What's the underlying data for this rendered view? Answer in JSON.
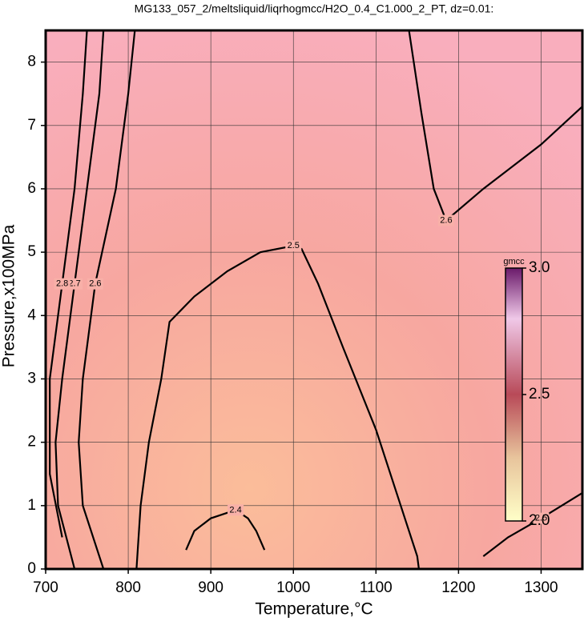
{
  "chart_data": {
    "type": "contour",
    "title": "MG133_057_2/meltsliquid/liqrhogmcc/H2O_0.4_C1.000_2_PT, dz=0.01:",
    "x_label": "Temperature,°C",
    "y_label": "Pressure,x100MPa",
    "xlim": [
      700,
      1350
    ],
    "ylim": [
      0,
      8.5
    ],
    "xticks": [
      700,
      800,
      900,
      1000,
      1100,
      1200,
      1300
    ],
    "yticks": [
      0,
      1,
      2,
      3,
      4,
      5,
      6,
      7,
      8
    ],
    "grid": true,
    "colorbar": {
      "label": "gmcc",
      "lim": [
        2,
        3
      ],
      "ticks": [
        {
          "value": 2,
          "label": "2.0"
        },
        2.5,
        {
          "value": 3,
          "label": "3.0"
        }
      ]
    },
    "series": [
      {
        "level": 2.4,
        "x": [
          870,
          880,
          900,
          930,
          945,
          955,
          965
        ],
        "y": [
          0.3,
          0.6,
          0.8,
          0.93,
          0.8,
          0.6,
          0.3
        ]
      },
      {
        "level": 2.5,
        "x": [
          810,
          815,
          825,
          840,
          850,
          880,
          920,
          960,
          1000,
          1010,
          1030,
          1060,
          1100,
          1130,
          1150,
          1152
        ],
        "y": [
          0,
          1,
          2,
          3,
          3.9,
          4.3,
          4.7,
          5,
          5.1,
          5.05,
          4.5,
          3.5,
          2.2,
          1,
          0.2,
          0
        ]
      },
      {
        "level": 2.5,
        "x": [
          1230,
          1260,
          1300,
          1350
        ],
        "y": [
          0.2,
          0.5,
          0.8,
          1.2
        ]
      },
      {
        "level": 2.6,
        "x": [
          770,
          745,
          740,
          745,
          760,
          785,
          800,
          808
        ],
        "y": [
          0,
          1,
          2,
          3,
          4.5,
          6,
          7.5,
          8.5
        ]
      },
      {
        "level": 2.6,
        "x": [
          1140,
          1155,
          1170,
          1185,
          1230,
          1300,
          1350
        ],
        "y": [
          8.5,
          7.2,
          6,
          5.5,
          6,
          6.7,
          7.3
        ]
      },
      {
        "level": 2.7,
        "x": [
          735,
          715,
          712,
          720,
          735,
          750,
          765,
          770
        ],
        "y": [
          0,
          1,
          2,
          3,
          4.5,
          6,
          7.5,
          8.5
        ]
      },
      {
        "level": 2.8,
        "x": [
          720,
          705,
          705,
          720,
          735,
          745,
          750
        ],
        "y": [
          0.5,
          1.5,
          3,
          4.5,
          6,
          7.5,
          8.5
        ]
      }
    ]
  }
}
